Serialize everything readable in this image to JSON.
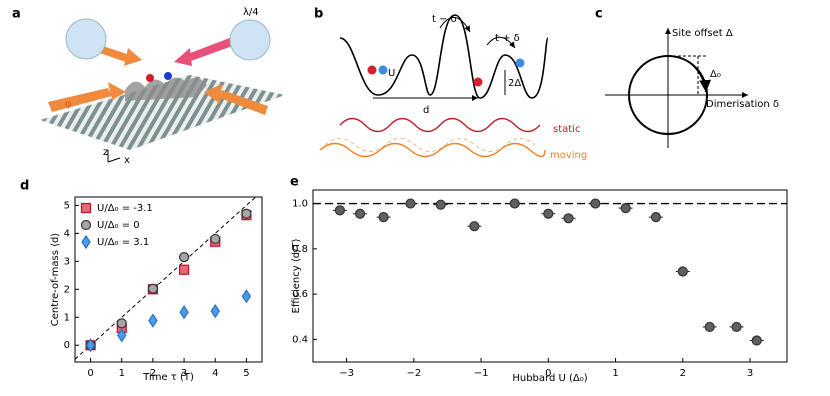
{
  "panel_labels": [
    "a",
    "b",
    "c",
    "d",
    "e"
  ],
  "panel_a": {
    "plate": "λ/4",
    "phase": "φ",
    "axis_z": "z",
    "axis_x": "x"
  },
  "panel_b": {
    "hop_left": "t − δ",
    "hop_right": "t + δ",
    "interaction": "U",
    "offset": "2Δ",
    "spacing": "d",
    "static": "static",
    "moving": "moving"
  },
  "panel_c": {
    "vertical_axis": "Site offset Δ",
    "radius": "Δ₀",
    "horizontal_axis": "Dimerisation δ"
  },
  "chart_data": [
    {
      "type": "scatter",
      "xlabel": "Time τ (T)",
      "ylabel": "Centre-of-mass ⟨d⟩",
      "x": [
        0,
        1,
        2,
        3,
        4,
        5
      ],
      "series": [
        {
          "name": "U/Δ₀ = -3.1",
          "color": "#e06a78",
          "marker": "square",
          "values": [
            0,
            0.62,
            2.0,
            2.7,
            3.7,
            4.65
          ]
        },
        {
          "name": "U/Δ₀ = 0",
          "color": "#a6a6a6",
          "marker": "circle",
          "values": [
            0,
            0.78,
            2.02,
            3.15,
            3.8,
            4.7
          ]
        },
        {
          "name": "U/Δ₀ = 3.1",
          "color": "#4a9be8",
          "marker": "diamond",
          "values": [
            0,
            0.35,
            0.88,
            1.18,
            1.22,
            1.75
          ]
        }
      ],
      "xlim": [
        -0.5,
        5.5
      ],
      "ylim": [
        -0.6,
        5.3
      ],
      "xticks": [
        0,
        1,
        2,
        3,
        4,
        5
      ],
      "yticks": [
        0,
        1,
        2,
        3,
        4,
        5
      ],
      "diagonal": true,
      "legend": "upper left"
    },
    {
      "type": "scatter",
      "xlabel": "Hubbard U (Δ₀)",
      "ylabel": "Efficiency ⟨d/T⟩",
      "x": [
        -3.1,
        -2.8,
        -2.45,
        -2.05,
        -1.6,
        -1.1,
        -0.5,
        0,
        0.3,
        0.7,
        1.15,
        1.6,
        2.0,
        2.4,
        2.8,
        3.1
      ],
      "series": [
        {
          "color": "#606060",
          "marker": "circle",
          "values": [
            0.97,
            0.955,
            0.94,
            1.0,
            0.995,
            0.9,
            1.0,
            0.955,
            0.935,
            1.0,
            0.98,
            0.94,
            0.7,
            0.455,
            0.455,
            0.395
          ]
        }
      ],
      "xlim": [
        -3.5,
        3.55
      ],
      "ylim": [
        0.3,
        1.06
      ],
      "xticks": [
        {
          "value": -3,
          "label": "−3"
        },
        {
          "value": -2,
          "label": "−2"
        },
        {
          "value": -1,
          "label": "−1"
        },
        0,
        1,
        2,
        3
      ],
      "yticks": [
        0.4,
        0.6,
        0.8,
        {
          "value": 1,
          "label": "1.0"
        }
      ],
      "hline": 1
    }
  ]
}
